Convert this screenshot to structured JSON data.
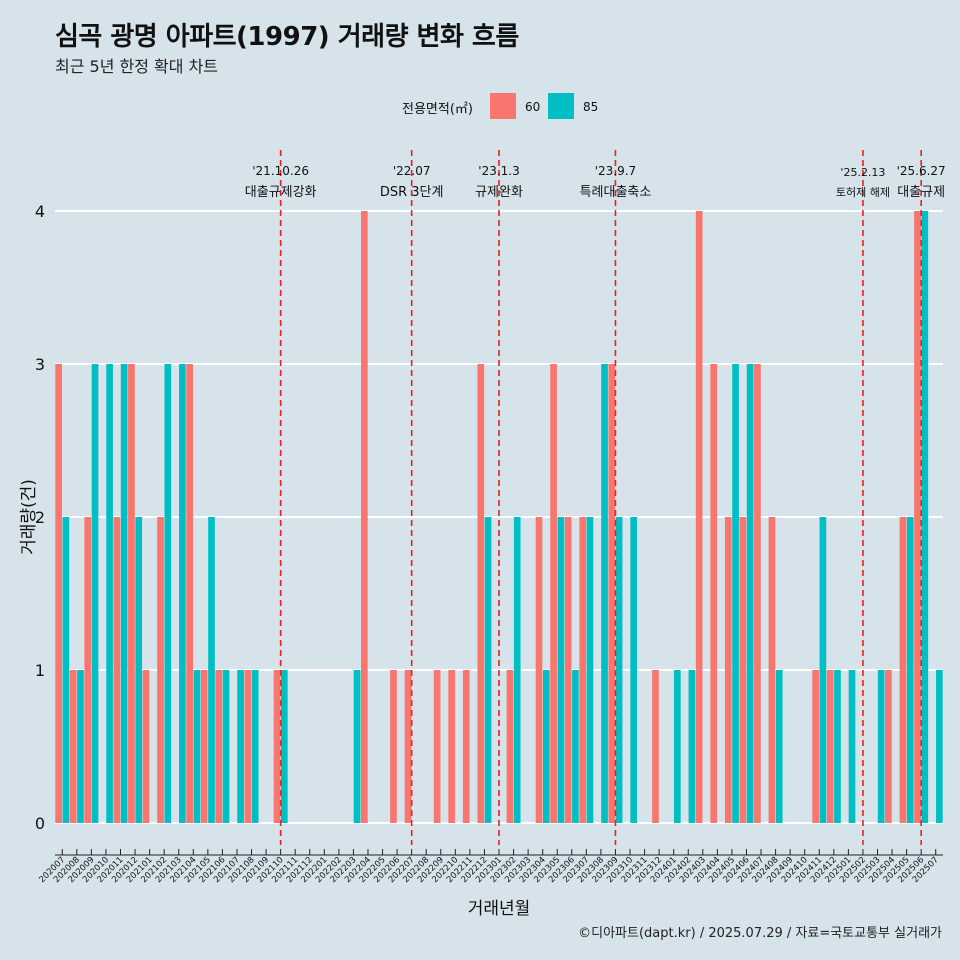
{
  "title": "심곡 광명 아파트(1997) 거래량 변화 흐름",
  "subtitle": "최근 5년 한정 확대 차트",
  "caption": "©디아파트(dapt.kr) / 2025.07.29 / 자료=국토교통부 실거래가",
  "colors": {
    "background": "#d6e3ea",
    "s60": "#f8766d",
    "s85": "#00bfc4",
    "event_line": "#e8211c",
    "grid": "#ffffff"
  },
  "chart_data": {
    "type": "bar",
    "title": "심곡 광명 아파트(1997) 거래량 변화 흐름",
    "subtitle": "최근 5년 한정 확대 차트",
    "xlabel": "거래년월",
    "ylabel": "거래량(건)",
    "ylim": [
      0,
      4
    ],
    "y_ticks": [
      0,
      1,
      2,
      3,
      4
    ],
    "grid": true,
    "legend": {
      "title": "전용면적(㎡)",
      "position": "top",
      "entries": [
        "60",
        "85"
      ]
    },
    "categories": [
      "202007",
      "202008",
      "202009",
      "202010",
      "202011",
      "202012",
      "202101",
      "202102",
      "202103",
      "202104",
      "202105",
      "202106",
      "202107",
      "202108",
      "202109",
      "202110",
      "202111",
      "202112",
      "202201",
      "202202",
      "202203",
      "202204",
      "202205",
      "202206",
      "202207",
      "202208",
      "202209",
      "202210",
      "202211",
      "202212",
      "202301",
      "202302",
      "202303",
      "202304",
      "202305",
      "202306",
      "202307",
      "202308",
      "202309",
      "202310",
      "202311",
      "202312",
      "202401",
      "202402",
      "202403",
      "202404",
      "202405",
      "202406",
      "202407",
      "202408",
      "202409",
      "202410",
      "202411",
      "202412",
      "202501",
      "202502",
      "202503",
      "202504",
      "202505",
      "202506",
      "202507"
    ],
    "series": [
      {
        "name": "60",
        "values": [
          3,
          1,
          2,
          0,
          2,
          3,
          1,
          2,
          0,
          3,
          1,
          1,
          0,
          1,
          0,
          1,
          0,
          0,
          0,
          0,
          0,
          4,
          0,
          1,
          1,
          0,
          1,
          1,
          1,
          3,
          0,
          1,
          0,
          2,
          3,
          2,
          2,
          0,
          3,
          0,
          0,
          1,
          0,
          0,
          4,
          3,
          2,
          2,
          3,
          2,
          0,
          0,
          1,
          1,
          0,
          0,
          0,
          1,
          2,
          4,
          0
        ]
      },
      {
        "name": "85",
        "values": [
          2,
          1,
          3,
          3,
          3,
          2,
          0,
          3,
          3,
          1,
          2,
          1,
          1,
          1,
          0,
          1,
          0,
          0,
          0,
          0,
          1,
          0,
          0,
          0,
          0,
          0,
          0,
          0,
          0,
          2,
          0,
          2,
          0,
          1,
          2,
          1,
          2,
          3,
          2,
          2,
          0,
          0,
          1,
          1,
          0,
          0,
          3,
          3,
          0,
          1,
          0,
          0,
          2,
          1,
          1,
          0,
          1,
          0,
          2,
          4,
          1
        ]
      }
    ],
    "annotations": [
      {
        "date": "'21.10.26",
        "label": "대출규제강화",
        "category": "202110"
      },
      {
        "date": "'22.07",
        "label": "DSR 3단계",
        "category": "202207"
      },
      {
        "date": "'23.1.3",
        "label": "규제완화",
        "category": "202301"
      },
      {
        "date": "'23.9.7",
        "label": "특례대출축소",
        "category": "202309"
      },
      {
        "date": "'25.2.13",
        "label": "토허제 해제",
        "category": "202502"
      },
      {
        "date": "'25.6.27",
        "label": "대출규제",
        "category": "202506"
      }
    ]
  }
}
